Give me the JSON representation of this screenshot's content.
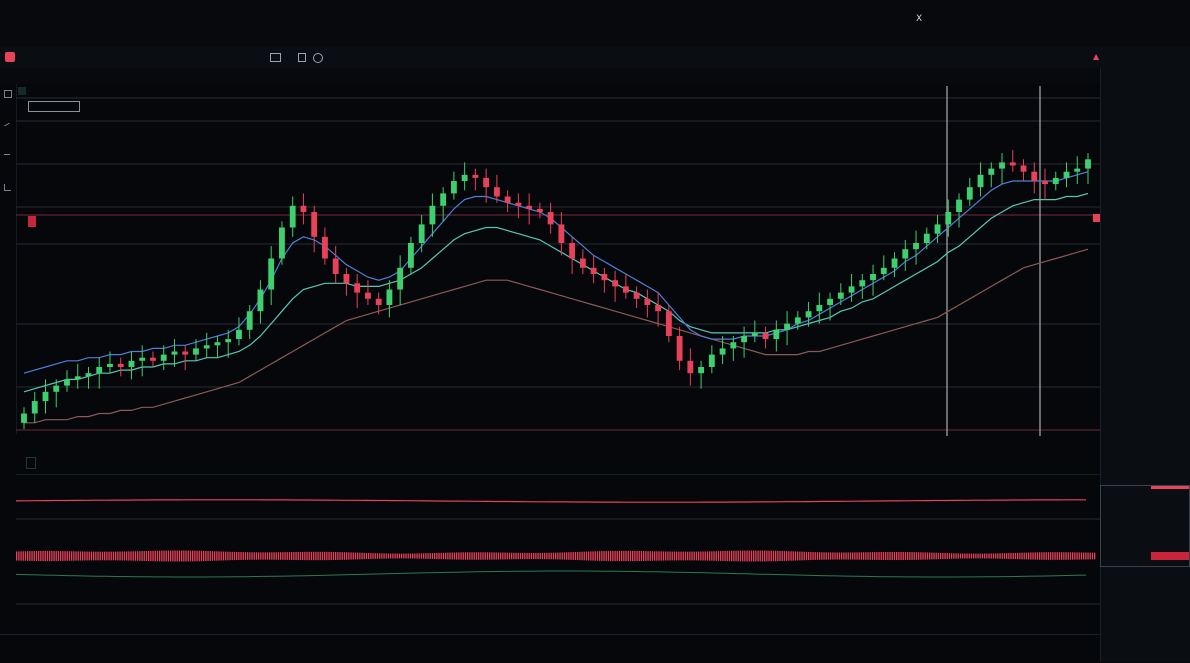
{
  "colors": {
    "background": "#05070b",
    "up": "#3ecf6e",
    "down": "#e8415a",
    "ema_fast": "#4f7fd6",
    "ema_slow": "#59c7b4",
    "ema_long": "#8a5a55",
    "grid": "#262c33"
  },
  "top_bar": {
    "left_items": [
      "",
      "",
      "",
      ""
    ],
    "center_items": [
      "",
      "",
      "",
      "",
      ""
    ],
    "right_items": [
      "",
      "",
      "",
      "",
      "",
      ""
    ],
    "close_glyph": "X"
  },
  "header": {
    "ticker": "",
    "quotes": [
      "",
      "",
      "",
      ""
    ],
    "toolbar_items": [
      "",
      "",
      "",
      "",
      "",
      "",
      "",
      ""
    ],
    "alert_glyph": "▲"
  },
  "chart": {
    "title": "",
    "legend_items": [
      "",
      "",
      ""
    ],
    "price_label": "",
    "markers": [
      "",
      ""
    ]
  },
  "indicator_panel": {
    "label": "",
    "sub_label": ""
  },
  "time_axis": {
    "ticks": [
      "",
      "",
      "",
      "",
      "",
      "",
      "",
      "",
      "",
      "",
      "",
      "",
      ""
    ]
  },
  "sidebar": {
    "top_label": "",
    "rows": [
      "",
      "",
      "",
      "",
      "",
      "",
      "",
      "",
      "",
      "",
      "",
      "",
      ""
    ]
  },
  "chart_data": {
    "type": "candlestick",
    "title": "",
    "xlabel": "",
    "ylabel": "",
    "grid": true,
    "closes": [
      5,
      9,
      12,
      14,
      16,
      17,
      18,
      20,
      21,
      20,
      22,
      23,
      22,
      24,
      25,
      24,
      26,
      27,
      28,
      29,
      32,
      38,
      45,
      55,
      65,
      72,
      70,
      62,
      55,
      50,
      47,
      44,
      42,
      40,
      45,
      52,
      60,
      66,
      72,
      76,
      80,
      82,
      81,
      78,
      75,
      73,
      72,
      71,
      70,
      66,
      60,
      55,
      52,
      50,
      48,
      46,
      44,
      42,
      40,
      38,
      30,
      22,
      18,
      20,
      24,
      26,
      28,
      30,
      31,
      29,
      32,
      34,
      36,
      38,
      40,
      42,
      44,
      46,
      48,
      50,
      52,
      55,
      58,
      60,
      63,
      66,
      70,
      74,
      78,
      82,
      84,
      86,
      85,
      83,
      80,
      79,
      81,
      83,
      84,
      87
    ],
    "ema_fast": [
      18,
      19,
      20,
      21,
      22,
      22,
      23,
      23,
      24,
      24,
      25,
      25,
      26,
      26,
      27,
      27,
      28,
      29,
      30,
      31,
      33,
      37,
      42,
      48,
      55,
      60,
      62,
      61,
      59,
      56,
      53,
      51,
      49,
      48,
      49,
      51,
      55,
      59,
      63,
      67,
      71,
      74,
      75,
      75,
      74,
      73,
      72,
      71,
      70,
      68,
      65,
      62,
      59,
      56,
      54,
      52,
      50,
      48,
      46,
      44,
      40,
      36,
      32,
      30,
      29,
      29,
      29,
      30,
      30,
      30,
      31,
      32,
      34,
      35,
      37,
      39,
      41,
      43,
      45,
      47,
      49,
      51,
      54,
      56,
      59,
      62,
      65,
      68,
      71,
      74,
      77,
      79,
      80,
      80,
      80,
      80,
      80,
      81,
      82,
      83
    ],
    "ema_slow": [
      12,
      13,
      14,
      15,
      16,
      16,
      17,
      18,
      18,
      19,
      19,
      20,
      20,
      21,
      21,
      22,
      22,
      23,
      23,
      24,
      25,
      27,
      30,
      34,
      38,
      42,
      45,
      46,
      47,
      47,
      47,
      46,
      46,
      46,
      47,
      48,
      50,
      52,
      55,
      58,
      61,
      63,
      64,
      65,
      65,
      64,
      63,
      62,
      61,
      59,
      57,
      55,
      53,
      51,
      49,
      47,
      45,
      44,
      42,
      40,
      38,
      35,
      33,
      32,
      31,
      31,
      31,
      31,
      31,
      31,
      32,
      32,
      33,
      34,
      35,
      36,
      38,
      39,
      41,
      42,
      44,
      46,
      48,
      50,
      52,
      54,
      57,
      59,
      62,
      65,
      68,
      70,
      72,
      73,
      74,
      74,
      74,
      75,
      75,
      76
    ],
    "ema_long": [
      2,
      2,
      3,
      3,
      3,
      4,
      4,
      5,
      5,
      6,
      6,
      7,
      7,
      8,
      9,
      10,
      11,
      12,
      13,
      14,
      15,
      17,
      19,
      21,
      23,
      25,
      27,
      29,
      31,
      33,
      35,
      36,
      37,
      38,
      39,
      40,
      41,
      42,
      43,
      44,
      45,
      46,
      47,
      48,
      48,
      48,
      47,
      46,
      45,
      44,
      43,
      42,
      41,
      40,
      39,
      38,
      37,
      36,
      35,
      34,
      33,
      32,
      31,
      30,
      29,
      28,
      27,
      26,
      25,
      24,
      24,
      24,
      24,
      25,
      25,
      26,
      27,
      28,
      29,
      30,
      31,
      32,
      33,
      34,
      35,
      36,
      38,
      40,
      42,
      44,
      46,
      48,
      50,
      52,
      53,
      54,
      55,
      56,
      57,
      58
    ]
  }
}
